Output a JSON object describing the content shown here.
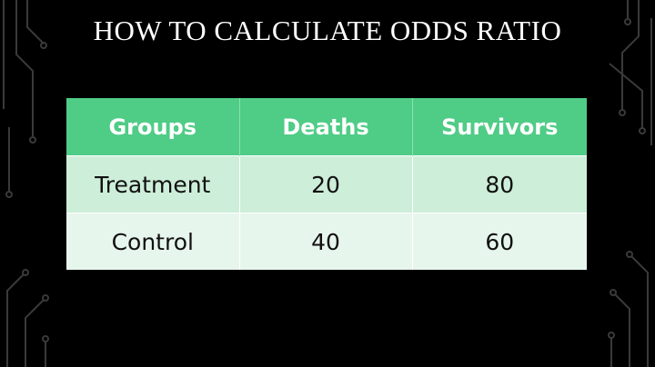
{
  "slide": {
    "title": "HOW TO CALCULATE ODDS RATIO"
  },
  "table": {
    "headers": [
      "Groups",
      "Deaths",
      "Survivors"
    ],
    "rows": [
      [
        "Treatment",
        "20",
        "80"
      ],
      [
        "Control",
        "40",
        "60"
      ]
    ]
  },
  "colors": {
    "background": "#000000",
    "header": "#4fcc86",
    "row_odd": "#cdeed9",
    "row_even": "#e7f6ec",
    "circuit": "#3a3a3a"
  }
}
